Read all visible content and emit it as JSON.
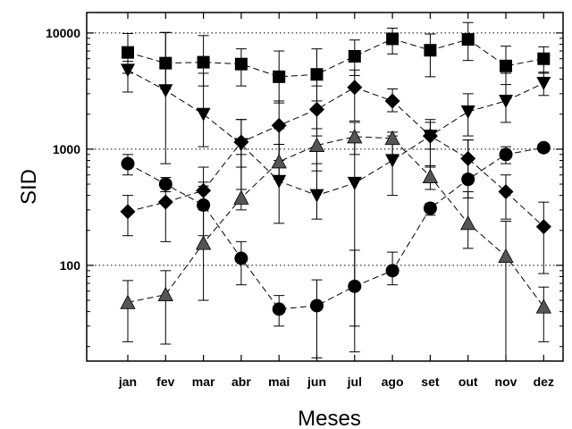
{
  "chart_data": {
    "type": "line",
    "title": "",
    "xlabel": "Meses",
    "ylabel": "SID",
    "yscale": "log",
    "ylim": [
      15,
      15000
    ],
    "grid": "dotted horizontal lines at 100, 1000, 10000",
    "legend": "none",
    "categories": [
      "jan",
      "fev",
      "mar",
      "abr",
      "mai",
      "jun",
      "jul",
      "ago",
      "set",
      "out",
      "nov",
      "dez"
    ],
    "y_ticks": [
      {
        "value": 100,
        "label": "100"
      },
      {
        "value": 1000,
        "label": "1000"
      },
      {
        "value": 10000,
        "label": "10000"
      }
    ],
    "series": [
      {
        "marker": "square",
        "fill": "#000000",
        "values": [
          6800,
          5500,
          5600,
          5400,
          4200,
          4400,
          6300,
          8900,
          7100,
          8800,
          5200,
          6000
        ],
        "error_low": [
          4500,
          3300,
          3500,
          3500,
          2500,
          2600,
          4300,
          6600,
          4200,
          5800,
          3600,
          4500
        ],
        "error_high": [
          9900,
          10100,
          9500,
          7300,
          7000,
          7300,
          8700,
          11000,
          9800,
          12300,
          7700,
          7600
        ]
      },
      {
        "marker": "triangle-down",
        "fill": "#000000",
        "values": [
          4800,
          3200,
          2000,
          1100,
          530,
          400,
          510,
          800,
          1300,
          2100,
          2600,
          3700
        ],
        "error_low": [
          3100,
          750,
          1050,
          450,
          230,
          250,
          18,
          400,
          700,
          1300,
          1700,
          2900
        ],
        "error_high": [
          5700,
          10100,
          4500,
          1800,
          1500,
          750,
          1400,
          1300,
          1800,
          3000,
          4500,
          4600
        ]
      },
      {
        "marker": "diamond",
        "fill": "#000000",
        "values": [
          290,
          350,
          440,
          1150,
          1600,
          2200,
          3400,
          2600,
          1300,
          830,
          430,
          215
        ],
        "error_low": [
          180,
          160,
          300,
          700,
          800,
          1300,
          1750,
          2100,
          1000,
          600,
          250,
          85
        ],
        "error_high": [
          400,
          480,
          700,
          1800,
          2600,
          3500,
          4800,
          3300,
          1700,
          1200,
          600,
          350
        ]
      },
      {
        "marker": "circle",
        "fill": "#000000",
        "values": [
          750,
          500,
          330,
          115,
          42,
          45,
          66,
          90,
          310,
          550,
          900,
          1030
        ],
        "error_low": [
          600,
          430,
          180,
          68,
          30,
          16,
          30,
          68,
          270,
          380,
          750,
          950
        ],
        "error_high": [
          900,
          570,
          480,
          160,
          55,
          75,
          135,
          130,
          340,
          1200,
          1050,
          1100
        ]
      },
      {
        "marker": "triangle-up",
        "fill": "#555555",
        "values": [
          48,
          56,
          155,
          380,
          780,
          1080,
          1280,
          1240,
          580,
          230,
          120,
          44
        ],
        "error_low": [
          22,
          21,
          50,
          300,
          550,
          650,
          900,
          900,
          450,
          140,
          12,
          22
        ],
        "error_high": [
          74,
          90,
          520,
          900,
          1100,
          1500,
          1700,
          1400,
          720,
          430,
          240,
          65
        ]
      }
    ]
  }
}
